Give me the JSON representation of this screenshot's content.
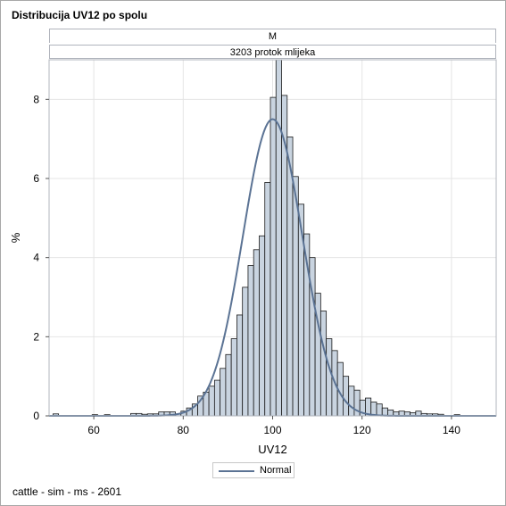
{
  "title": "Distribucija UV12 po spolu",
  "panel": {
    "gender": "M",
    "trait": "3203 protok mlijeka"
  },
  "legend": {
    "normal_label": "Normal"
  },
  "footnote": "cattle - sim - ms - 2601",
  "colors": {
    "bar_fill": "#c9d4e0",
    "bar_stroke": "#1a1a1a",
    "curve": "#5b7394",
    "grid": "#e4e4e4"
  },
  "chart_data": {
    "type": "bar",
    "xlabel": "UV12",
    "ylabel": "%",
    "xlim": [
      50,
      150
    ],
    "ylim": [
      0,
      9
    ],
    "xticks": [
      60,
      80,
      100,
      120,
      140
    ],
    "yticks": [
      0,
      2,
      4,
      6,
      8
    ],
    "bin_width": 1.25,
    "bin_centers": [
      51.5,
      60.25,
      63,
      68.875,
      70.125,
      71.375,
      72.625,
      73.875,
      75.125,
      76.375,
      77.625,
      78.875,
      80.125,
      81.375,
      82.625,
      83.875,
      85.125,
      86.375,
      87.625,
      88.875,
      90.125,
      91.375,
      92.625,
      93.875,
      95.125,
      96.375,
      97.625,
      98.875,
      100.125,
      101.375,
      102.625,
      103.875,
      105.125,
      106.375,
      107.625,
      108.875,
      110.125,
      111.375,
      112.625,
      113.875,
      115.125,
      116.375,
      117.625,
      118.875,
      120.125,
      121.375,
      122.625,
      123.875,
      125.125,
      126.375,
      127.625,
      128.875,
      130.125,
      131.375,
      132.625,
      133.875,
      135.125,
      136.375,
      137.625,
      141.25
    ],
    "values": [
      0.05,
      0.03,
      0.03,
      0.06,
      0.06,
      0.04,
      0.05,
      0.05,
      0.1,
      0.1,
      0.1,
      0.05,
      0.12,
      0.2,
      0.3,
      0.5,
      0.6,
      0.75,
      0.9,
      1.2,
      1.55,
      1.95,
      2.55,
      3.25,
      3.8,
      4.2,
      4.55,
      5.9,
      8.05,
      9.0,
      8.1,
      7.05,
      6.05,
      5.35,
      4.6,
      4.0,
      3.1,
      2.65,
      1.95,
      1.65,
      1.35,
      1.0,
      0.75,
      0.65,
      0.4,
      0.45,
      0.35,
      0.3,
      0.2,
      0.15,
      0.1,
      0.12,
      0.1,
      0.08,
      0.12,
      0.06,
      0.05,
      0.05,
      0.04,
      0.03
    ],
    "series": [
      {
        "name": "Normal",
        "type": "normal_curve",
        "mean": 100,
        "sd": 6.65
      }
    ]
  }
}
